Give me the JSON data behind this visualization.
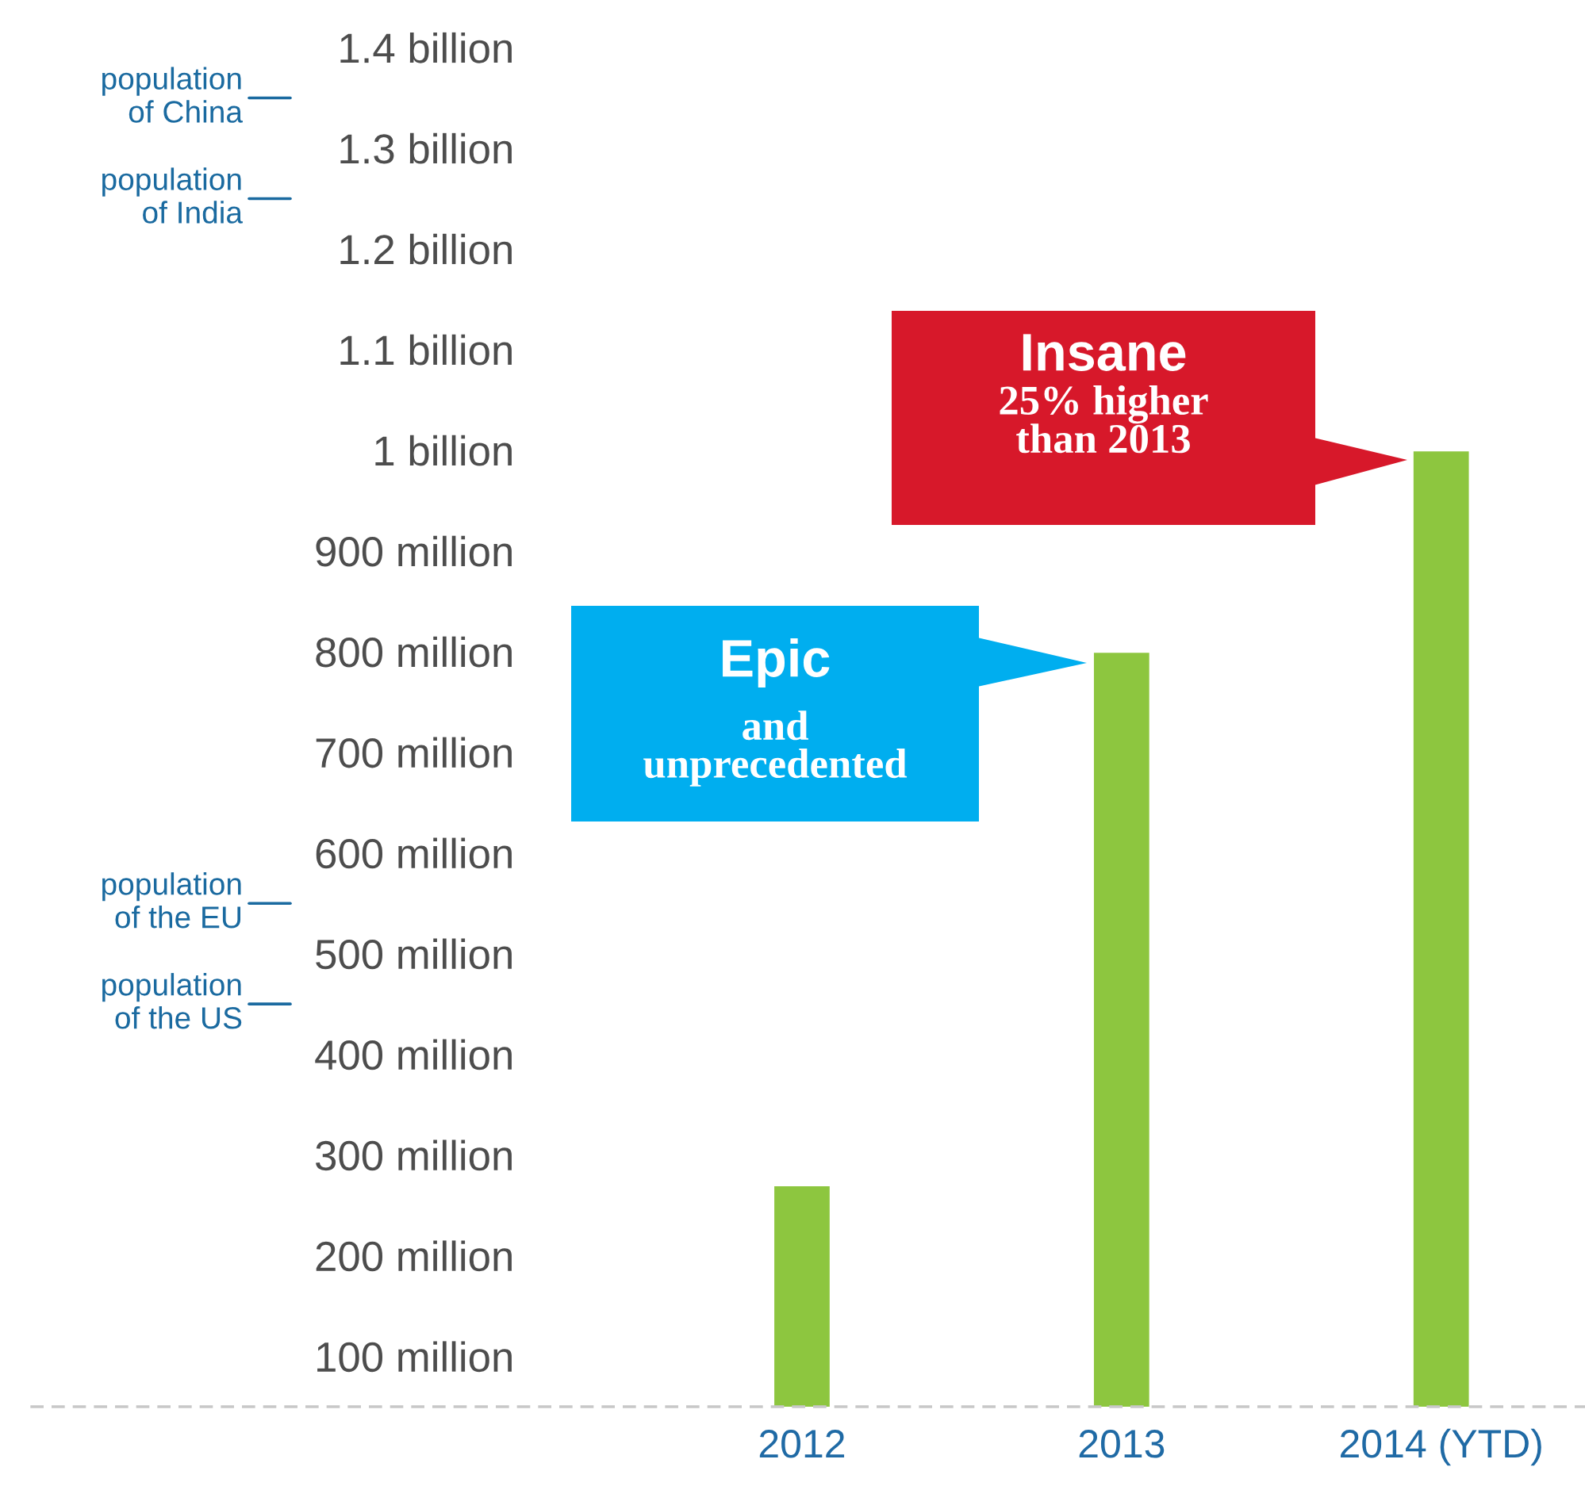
{
  "chart_data": {
    "type": "bar",
    "categories": [
      "2012",
      "2013",
      "2014 (YTD)"
    ],
    "values": [
      270000000,
      800000000,
      1000000000
    ],
    "color": "#8dc63f",
    "ylim": [
      50000000,
      1400000000
    ],
    "yticks": [
      {
        "value": 100000000,
        "label": "100 million"
      },
      {
        "value": 200000000,
        "label": "200 million"
      },
      {
        "value": 300000000,
        "label": "300 million"
      },
      {
        "value": 400000000,
        "label": "400 million"
      },
      {
        "value": 500000000,
        "label": "500 million"
      },
      {
        "value": 600000000,
        "label": "600 million"
      },
      {
        "value": 700000000,
        "label": "700 million"
      },
      {
        "value": 800000000,
        "label": "800 million"
      },
      {
        "value": 900000000,
        "label": "900 million"
      },
      {
        "value": 1000000000,
        "label": "1 billion"
      },
      {
        "value": 1100000000,
        "label": "1.1 billion"
      },
      {
        "value": 1200000000,
        "label": "1.2 billion"
      },
      {
        "value": 1300000000,
        "label": "1.3 billion"
      },
      {
        "value": 1400000000,
        "label": "1.4 billion"
      }
    ],
    "ref_lines": [
      {
        "axis": "y",
        "value": 1350000000,
        "label": "population\nof China",
        "color": "#1a6aa0"
      },
      {
        "axis": "y",
        "value": 1250000000,
        "label": "population\nof India",
        "color": "#1a6aa0"
      },
      {
        "axis": "y",
        "value": 550000000,
        "label": "population\nof the EU",
        "color": "#1a6aa0"
      },
      {
        "axis": "y",
        "value": 450000000,
        "label": "population\nof the US",
        "color": "#1a6aa0"
      }
    ],
    "annotations": [
      "Epic",
      "and\nunprecedented",
      "Insane",
      "25% higher\nthan 2013"
    ],
    "grid": false,
    "legend": false
  }
}
